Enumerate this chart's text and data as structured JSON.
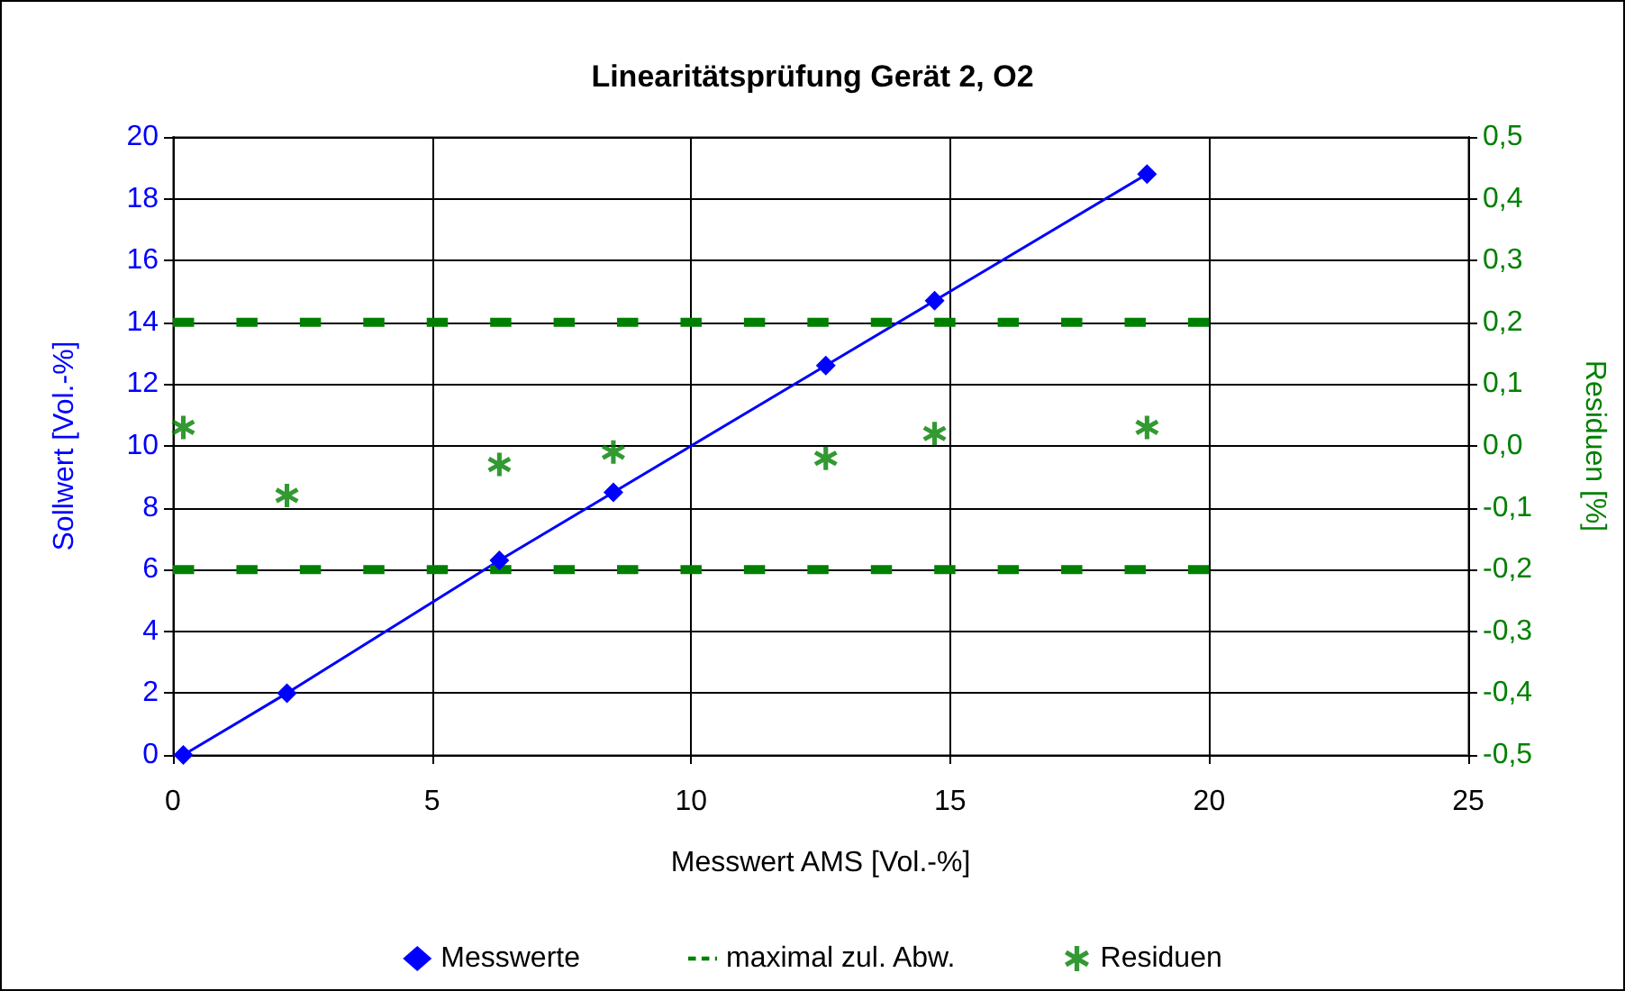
{
  "chart_data": {
    "type": "line",
    "title": "Linearitätsprüfung Gerät 2, O2",
    "xlabel": "Messwert AMS [Vol.-%]",
    "ylabel": "Sollwert [Vol.-%]",
    "y2label": "Residuen [%]",
    "xlim": [
      0,
      25
    ],
    "xticks": [
      0,
      5,
      10,
      15,
      20,
      25
    ],
    "ylim": [
      0,
      20
    ],
    "yticks": [
      0,
      2,
      4,
      6,
      8,
      10,
      12,
      14,
      16,
      18,
      20
    ],
    "y2lim": [
      -0.5,
      0.5
    ],
    "y2ticks": [
      {
        "value": -0.5,
        "label": "-0,5"
      },
      {
        "value": -0.4,
        "label": "-0,4"
      },
      {
        "value": -0.3,
        "label": "-0,3"
      },
      {
        "value": -0.2,
        "label": "-0,2"
      },
      {
        "value": -0.1,
        "label": "-0,1"
      },
      {
        "value": 0,
        "label": "0,0"
      },
      {
        "value": 0.1,
        "label": "0,1"
      },
      {
        "value": 0.2,
        "label": "0,2"
      },
      {
        "value": 0.3,
        "label": "0,3"
      },
      {
        "value": 0.4,
        "label": "0,4"
      },
      {
        "value": 0.5,
        "label": "0,5"
      }
    ],
    "grid": true,
    "legend": "bottom",
    "series": [
      {
        "name": "Messwerte",
        "color": "#0000ff",
        "marker": "diamond",
        "line_style": "solid",
        "x": [
          0.2,
          2.2,
          6.3,
          8.5,
          12.6,
          14.7,
          18.8
        ],
        "values": [
          0,
          2.0,
          6.3,
          8.5,
          12.6,
          14.7,
          18.8
        ]
      },
      {
        "name": "maximal zul. Abw.",
        "axis": "y2",
        "color": "#008000",
        "marker": "none",
        "line_style": "dashed",
        "x": [
          0,
          20
        ],
        "values": [
          0.2,
          0.2
        ]
      },
      {
        "axis": "y2",
        "color": "#008000",
        "marker": "none",
        "line_style": "dashed",
        "x": [
          0,
          20
        ],
        "values": [
          -0.2,
          -0.2
        ]
      },
      {
        "name": "Residuen",
        "type": "scatter",
        "axis": "y2",
        "color": "#008000",
        "marker": "cross",
        "x": [
          0.2,
          2.2,
          6.3,
          8.5,
          12.6,
          14.7,
          18.8
        ],
        "values": [
          0.03,
          -0.08,
          -0.03,
          -0.01,
          -0.02,
          0.02,
          0.03
        ]
      }
    ]
  }
}
